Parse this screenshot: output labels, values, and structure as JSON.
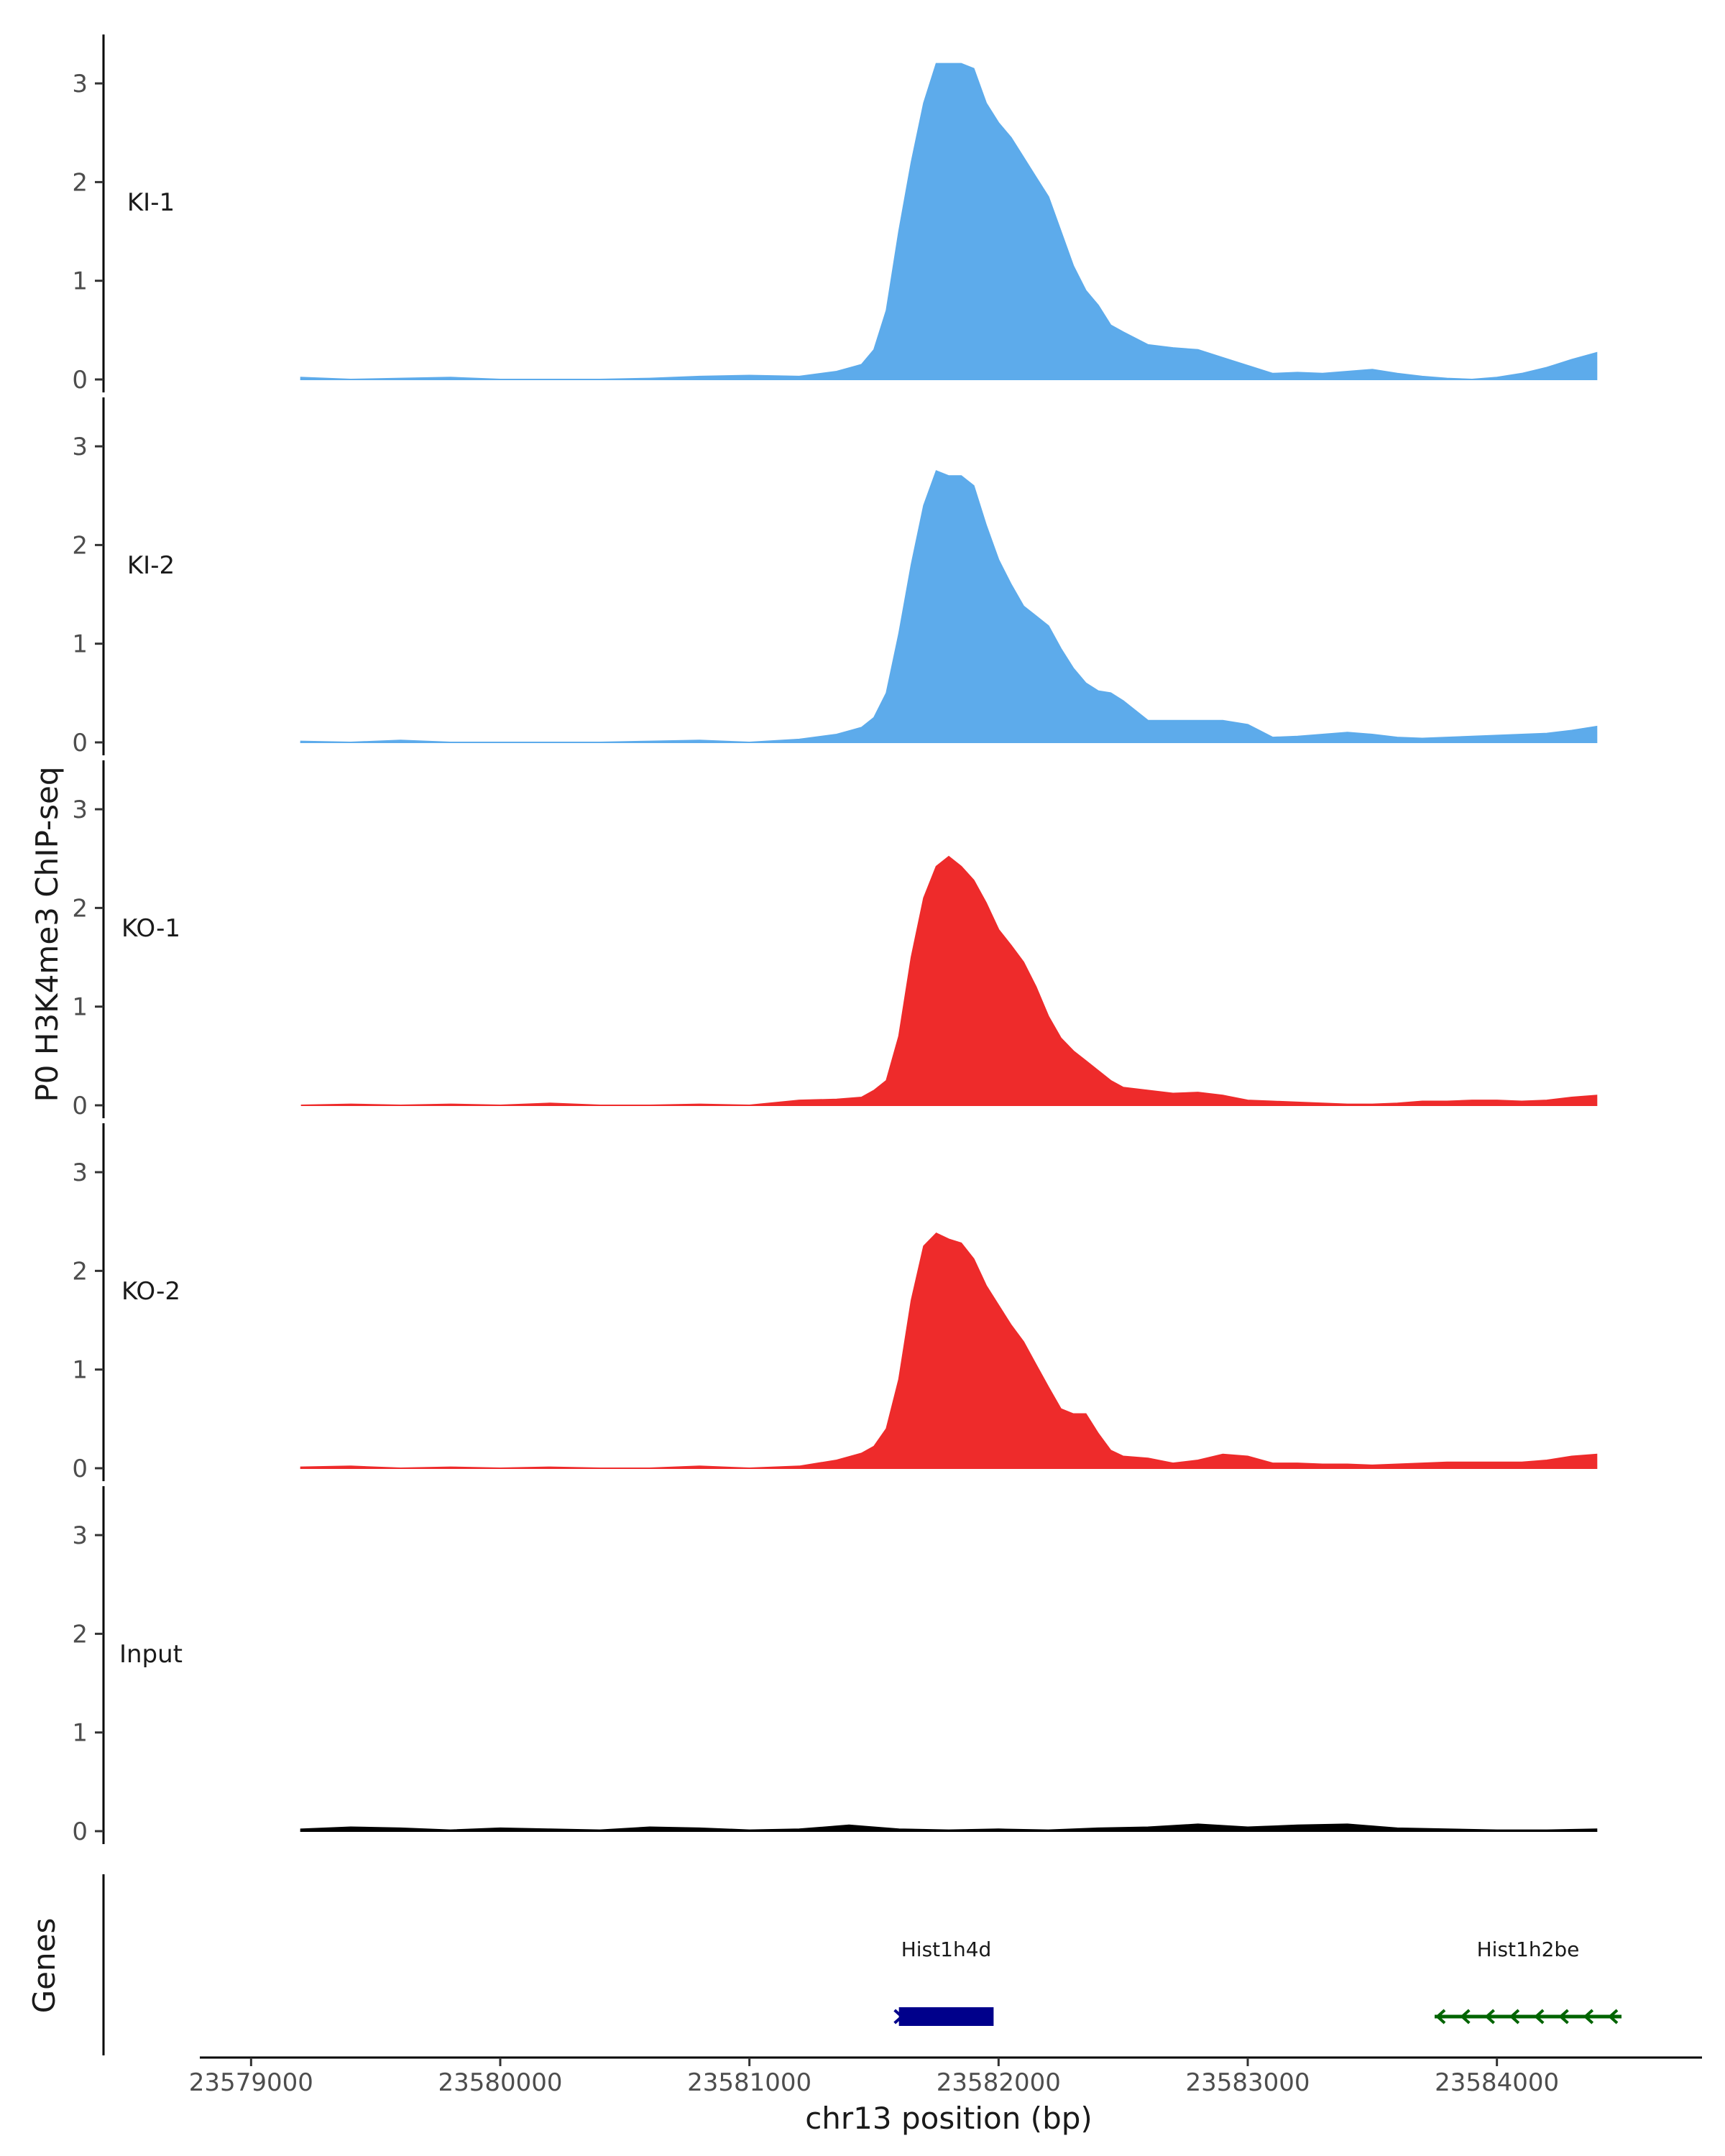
{
  "chart_data": {
    "type": "area",
    "title": "",
    "xlabel": "chr13 position (bp)",
    "ylabel": "P0 H3K4me3 ChIP-seq",
    "xlim": [
      23578800,
      23584800
    ],
    "x_ticks": [
      23579000,
      23580000,
      23581000,
      23582000,
      23583000,
      23584000
    ],
    "x_tick_labels": [
      "23579000",
      "23580000",
      "23581000",
      "23582000",
      "23583000",
      "23584000"
    ],
    "ylim": [
      0,
      3.35
    ],
    "y_ticks": [
      0,
      1,
      2,
      3
    ],
    "y_tick_labels": [
      "0",
      "1",
      "2",
      "3"
    ],
    "grid": false,
    "tracks": [
      {
        "name": "KI-1",
        "color": "#5dabeb",
        "x": [
          23579200,
          23579400,
          23579600,
          23579800,
          23580000,
          23580200,
          23580400,
          23580600,
          23580800,
          23581000,
          23581200,
          23581350,
          23581450,
          23581500,
          23581550,
          23581600,
          23581650,
          23581700,
          23581750,
          23581800,
          23581850,
          23581900,
          23581950,
          23582000,
          23582050,
          23582100,
          23582150,
          23582200,
          23582250,
          23582300,
          23582350,
          23582400,
          23582450,
          23582500,
          23582600,
          23582700,
          23582800,
          23582900,
          23583000,
          23583100,
          23583200,
          23583300,
          23583400,
          23583500,
          23583600,
          23583700,
          23583800,
          23583900,
          23584000,
          23584100,
          23584200,
          23584300,
          23584400
        ],
        "values": [
          0.02,
          0.0,
          0.01,
          0.02,
          0.0,
          0.0,
          0.0,
          0.01,
          0.03,
          0.04,
          0.03,
          0.08,
          0.15,
          0.3,
          0.7,
          1.5,
          2.2,
          2.8,
          3.2,
          3.2,
          3.2,
          3.15,
          2.8,
          2.6,
          2.45,
          2.25,
          2.05,
          1.85,
          1.5,
          1.15,
          0.9,
          0.75,
          0.55,
          0.48,
          0.35,
          0.32,
          0.3,
          0.22,
          0.14,
          0.06,
          0.07,
          0.06,
          0.08,
          0.1,
          0.06,
          0.03,
          0.01,
          0.0,
          0.02,
          0.06,
          0.12,
          0.2,
          0.27
        ]
      },
      {
        "name": "KI-2",
        "color": "#5dabeb",
        "x": [
          23579200,
          23579400,
          23579600,
          23579800,
          23580000,
          23580200,
          23580400,
          23580600,
          23580800,
          23581000,
          23581200,
          23581350,
          23581450,
          23581500,
          23581550,
          23581600,
          23581650,
          23581700,
          23581750,
          23581800,
          23581850,
          23581900,
          23581950,
          23582000,
          23582050,
          23582100,
          23582150,
          23582200,
          23582250,
          23582300,
          23582350,
          23582400,
          23582450,
          23582500,
          23582600,
          23582700,
          23582800,
          23582900,
          23583000,
          23583100,
          23583200,
          23583300,
          23583400,
          23583500,
          23583600,
          23583700,
          23583800,
          23583900,
          23584000,
          23584100,
          23584200,
          23584300,
          23584400
        ],
        "values": [
          0.01,
          0.0,
          0.02,
          0.0,
          0.0,
          0.0,
          0.0,
          0.01,
          0.02,
          0.0,
          0.03,
          0.08,
          0.15,
          0.25,
          0.5,
          1.1,
          1.8,
          2.4,
          2.75,
          2.7,
          2.7,
          2.6,
          2.2,
          1.85,
          1.6,
          1.38,
          1.28,
          1.18,
          0.95,
          0.75,
          0.6,
          0.52,
          0.5,
          0.42,
          0.22,
          0.22,
          0.22,
          0.22,
          0.18,
          0.05,
          0.06,
          0.08,
          0.1,
          0.08,
          0.05,
          0.04,
          0.05,
          0.06,
          0.07,
          0.08,
          0.09,
          0.12,
          0.16
        ]
      },
      {
        "name": "KO-1",
        "color": "#ee2b2b",
        "x": [
          23579200,
          23579400,
          23579600,
          23579800,
          23580000,
          23580200,
          23580400,
          23580600,
          23580800,
          23581000,
          23581200,
          23581350,
          23581450,
          23581500,
          23581550,
          23581600,
          23581650,
          23581700,
          23581750,
          23581800,
          23581850,
          23581900,
          23581950,
          23582000,
          23582050,
          23582100,
          23582150,
          23582200,
          23582250,
          23582300,
          23582350,
          23582400,
          23582450,
          23582500,
          23582600,
          23582700,
          23582800,
          23582900,
          23583000,
          23583100,
          23583200,
          23583300,
          23583400,
          23583500,
          23583600,
          23583700,
          23583800,
          23583900,
          23584000,
          23584100,
          23584200,
          23584300,
          23584400
        ],
        "values": [
          0.0,
          0.01,
          0.0,
          0.01,
          0.0,
          0.02,
          0.0,
          0.0,
          0.01,
          0.0,
          0.05,
          0.06,
          0.08,
          0.15,
          0.25,
          0.7,
          1.5,
          2.1,
          2.42,
          2.52,
          2.42,
          2.28,
          2.05,
          1.78,
          1.62,
          1.45,
          1.2,
          0.9,
          0.68,
          0.55,
          0.45,
          0.35,
          0.25,
          0.18,
          0.15,
          0.12,
          0.13,
          0.1,
          0.05,
          0.04,
          0.03,
          0.02,
          0.01,
          0.01,
          0.02,
          0.04,
          0.04,
          0.05,
          0.05,
          0.04,
          0.05,
          0.08,
          0.1
        ]
      },
      {
        "name": "KO-2",
        "color": "#ee2b2b",
        "x": [
          23579200,
          23579400,
          23579600,
          23579800,
          23580000,
          23580200,
          23580400,
          23580600,
          23580800,
          23581000,
          23581200,
          23581350,
          23581450,
          23581500,
          23581550,
          23581600,
          23581650,
          23581700,
          23581750,
          23581800,
          23581850,
          23581900,
          23581950,
          23582000,
          23582050,
          23582100,
          23582150,
          23582200,
          23582250,
          23582300,
          23582350,
          23582400,
          23582450,
          23582500,
          23582600,
          23582700,
          23582800,
          23582900,
          23583000,
          23583100,
          23583200,
          23583300,
          23583400,
          23583500,
          23583600,
          23583700,
          23583800,
          23583900,
          23584000,
          23584100,
          23584200,
          23584300,
          23584400
        ],
        "values": [
          0.01,
          0.02,
          0.0,
          0.01,
          0.0,
          0.01,
          0.0,
          0.0,
          0.02,
          0.0,
          0.02,
          0.08,
          0.15,
          0.22,
          0.4,
          0.9,
          1.7,
          2.25,
          2.38,
          2.32,
          2.28,
          2.12,
          1.85,
          1.65,
          1.45,
          1.28,
          1.05,
          0.82,
          0.6,
          0.55,
          0.55,
          0.35,
          0.18,
          0.12,
          0.1,
          0.05,
          0.08,
          0.14,
          0.12,
          0.05,
          0.05,
          0.04,
          0.04,
          0.03,
          0.04,
          0.05,
          0.06,
          0.06,
          0.06,
          0.06,
          0.08,
          0.12,
          0.14
        ]
      },
      {
        "name": "Input",
        "color": "#000000",
        "x": [
          23579200,
          23579400,
          23579600,
          23579800,
          23580000,
          23580200,
          23580400,
          23580600,
          23580800,
          23581000,
          23581200,
          23581400,
          23581600,
          23581800,
          23582000,
          23582200,
          23582400,
          23582600,
          23582800,
          23583000,
          23583200,
          23583400,
          23583600,
          23583800,
          23584000,
          23584200,
          23584400
        ],
        "values": [
          0.02,
          0.04,
          0.03,
          0.01,
          0.03,
          0.02,
          0.01,
          0.04,
          0.03,
          0.01,
          0.02,
          0.06,
          0.02,
          0.01,
          0.02,
          0.01,
          0.03,
          0.04,
          0.07,
          0.04,
          0.06,
          0.07,
          0.03,
          0.02,
          0.01,
          0.01,
          0.02
        ]
      }
    ],
    "genes": {
      "track_label": "Genes",
      "items": [
        {
          "name": "Hist1h4d",
          "start": 23581600,
          "end": 23581980,
          "strand": "+",
          "color": "#00008b"
        },
        {
          "name": "Hist1h2be",
          "start": 23583750,
          "end": 23584500,
          "strand": "-",
          "color": "#006400"
        }
      ]
    }
  }
}
